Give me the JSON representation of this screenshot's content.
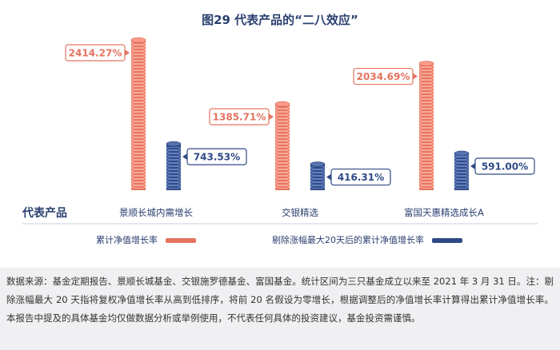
{
  "title": "图29  代表产品的“二八效应”",
  "chart_data": {
    "type": "bar",
    "categories": [
      "景顺长城内需增长",
      "交银精选",
      "富国天惠精选成长A"
    ],
    "axis_label": "代表产品",
    "series": [
      {
        "name": "累计净值增长率",
        "values": [
          2414.27,
          1385.71,
          2034.69
        ],
        "labels": [
          "2414.27%",
          "1385.71%",
          "2034.69%"
        ],
        "color": "#e57360"
      },
      {
        "name": "剔除涨幅最大20天后的累计净值增长率",
        "values": [
          743.53,
          416.31,
          591.0
        ],
        "labels": [
          "743.53%",
          "416.31%",
          "591.00%"
        ],
        "color": "#2f4a86"
      }
    ]
  },
  "legend": {
    "item1": "累计净值增长率",
    "item2": "剔除涨幅最大20天后的累计净值增长率"
  },
  "note": "数据来源：基金定期报告、景顺长城基金、交银施罗德基金、富国基金。统计区间为三只基金成立以来至 2021 年 3 月 31 日。注：剔除涨幅最大 20 天指将复权净值增长率从高到低排序，将前 20 名假设为零增长，根据调整后的净值增长率计算得出累计净值增长率。本报告中提及的具体基金均仅做数据分析或举例使用，不代表任何具体的投资建议，基金投资需谨慎。"
}
